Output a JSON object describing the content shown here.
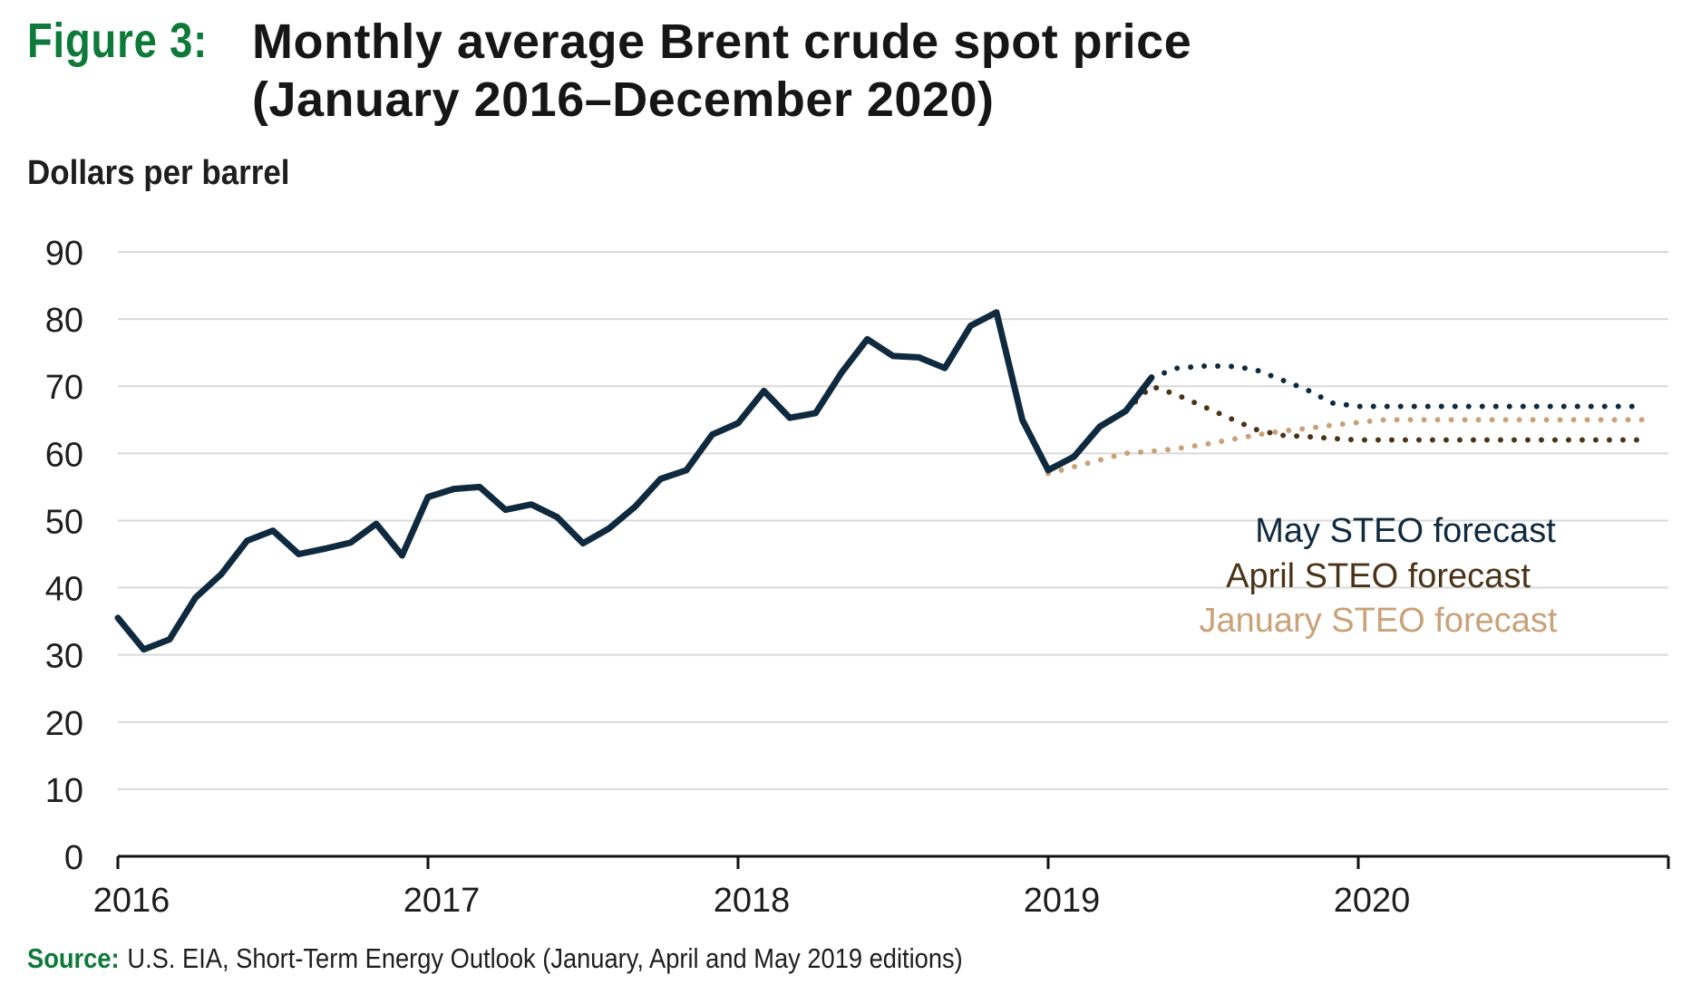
{
  "figure": {
    "label": "Figure 3:",
    "title": "Monthly average Brent crude spot price (January 2016–December 2020)",
    "unit_label": "Dollars per barrel"
  },
  "source": {
    "label": "Source:",
    "text": "U.S. EIA, Short-Term Energy Outlook (January, April and May 2019 editions)"
  },
  "chart_data": {
    "type": "line",
    "title": "Monthly average Brent crude spot price (January 2016–December 2020)",
    "ylabel": "Dollars per barrel",
    "ylim": [
      0,
      90
    ],
    "yticks": [
      0,
      10,
      20,
      30,
      40,
      50,
      60,
      70,
      80,
      90
    ],
    "xlim": [
      "2016-01",
      "2020-12"
    ],
    "xticks": [
      "2016",
      "2017",
      "2018",
      "2019",
      "2020"
    ],
    "grid": true,
    "legend": "annotation inside plot, right side",
    "colors": {
      "actual": "#0f2a3f",
      "may": "#0f2a3f",
      "april": "#4a3418",
      "january": "#c9a27a",
      "gridline": "#d9d9d9",
      "axis": "#111111",
      "figure_label": "#0d7a3a"
    },
    "series": [
      {
        "key": "actual",
        "style": "solid",
        "points": [
          [
            "2016-01",
            35.5
          ],
          [
            "2016-02",
            30.8
          ],
          [
            "2016-03",
            32.3
          ],
          [
            "2016-04",
            38.5
          ],
          [
            "2016-05",
            42.0
          ],
          [
            "2016-06",
            47.0
          ],
          [
            "2016-07",
            48.5
          ],
          [
            "2016-08",
            45.0
          ],
          [
            "2016-09",
            45.8
          ],
          [
            "2016-10",
            46.7
          ],
          [
            "2016-11",
            49.5
          ],
          [
            "2016-12",
            44.8
          ],
          [
            "2017-01",
            53.5
          ],
          [
            "2017-02",
            54.7
          ],
          [
            "2017-03",
            55.0
          ],
          [
            "2017-04",
            51.6
          ],
          [
            "2017-05",
            52.4
          ],
          [
            "2017-06",
            50.5
          ],
          [
            "2017-07",
            46.6
          ],
          [
            "2017-08",
            48.8
          ],
          [
            "2017-09",
            52.0
          ],
          [
            "2017-10",
            56.2
          ],
          [
            "2017-11",
            57.5
          ],
          [
            "2017-12",
            62.8
          ],
          [
            "2018-01",
            64.5
          ],
          [
            "2018-02",
            69.3
          ],
          [
            "2018-03",
            65.3
          ],
          [
            "2018-04",
            66.0
          ],
          [
            "2018-05",
            72.0
          ],
          [
            "2018-06",
            77.0
          ],
          [
            "2018-07",
            74.5
          ],
          [
            "2018-08",
            74.3
          ],
          [
            "2018-09",
            72.7
          ],
          [
            "2018-10",
            79.0
          ],
          [
            "2018-11",
            81.0
          ],
          [
            "2018-12",
            65.0
          ],
          [
            "2019-01",
            57.5
          ],
          [
            "2019-02",
            59.5
          ],
          [
            "2019-03",
            64.0
          ],
          [
            "2019-04",
            66.3
          ],
          [
            "2019-05",
            71.3
          ]
        ]
      },
      {
        "key": "may",
        "name": "May STEO forecast",
        "style": "dotted",
        "points": [
          [
            "2019-05",
            71.3
          ],
          [
            "2019-06",
            72.7
          ],
          [
            "2019-07",
            73.0
          ],
          [
            "2019-08",
            73.0
          ],
          [
            "2019-09",
            72.5
          ],
          [
            "2019-10",
            71.0
          ],
          [
            "2019-11",
            69.5
          ],
          [
            "2019-12",
            67.5
          ],
          [
            "2020-01",
            67.0
          ],
          [
            "2020-02",
            67.0
          ],
          [
            "2020-03",
            67.0
          ],
          [
            "2020-04",
            67.0
          ],
          [
            "2020-05",
            67.0
          ],
          [
            "2020-06",
            67.0
          ],
          [
            "2020-07",
            67.0
          ],
          [
            "2020-08",
            67.0
          ],
          [
            "2020-09",
            67.0
          ],
          [
            "2020-10",
            67.0
          ],
          [
            "2020-11",
            67.0
          ],
          [
            "2020-12",
            67.0
          ]
        ]
      },
      {
        "key": "april",
        "name": "April STEO forecast",
        "style": "dotted",
        "points": [
          [
            "2019-04",
            66.3
          ],
          [
            "2019-05",
            70.0
          ],
          [
            "2019-06",
            68.7
          ],
          [
            "2019-07",
            67.0
          ],
          [
            "2019-08",
            65.3
          ],
          [
            "2019-09",
            63.6
          ],
          [
            "2019-10",
            62.7
          ],
          [
            "2019-11",
            62.5
          ],
          [
            "2019-12",
            62.2
          ],
          [
            "2020-01",
            62.0
          ],
          [
            "2020-02",
            62.0
          ],
          [
            "2020-03",
            62.0
          ],
          [
            "2020-04",
            62.0
          ],
          [
            "2020-05",
            62.0
          ],
          [
            "2020-06",
            62.0
          ],
          [
            "2020-07",
            62.0
          ],
          [
            "2020-08",
            62.0
          ],
          [
            "2020-09",
            62.0
          ],
          [
            "2020-10",
            62.0
          ],
          [
            "2020-11",
            62.0
          ],
          [
            "2020-12",
            62.0
          ]
        ]
      },
      {
        "key": "january",
        "name": "January STEO forecast",
        "style": "dotted",
        "points": [
          [
            "2019-01",
            57.0
          ],
          [
            "2019-02",
            58.0
          ],
          [
            "2019-03",
            59.0
          ],
          [
            "2019-04",
            60.0
          ],
          [
            "2019-05",
            60.3
          ],
          [
            "2019-06",
            60.7
          ],
          [
            "2019-07",
            61.3
          ],
          [
            "2019-08",
            62.0
          ],
          [
            "2019-09",
            62.7
          ],
          [
            "2019-10",
            63.3
          ],
          [
            "2019-11",
            63.7
          ],
          [
            "2019-12",
            64.2
          ],
          [
            "2020-01",
            64.6
          ],
          [
            "2020-02",
            65.0
          ],
          [
            "2020-03",
            65.0
          ],
          [
            "2020-04",
            65.0
          ],
          [
            "2020-05",
            65.0
          ],
          [
            "2020-06",
            65.0
          ],
          [
            "2020-07",
            65.0
          ],
          [
            "2020-08",
            65.0
          ],
          [
            "2020-09",
            65.0
          ],
          [
            "2020-10",
            65.0
          ],
          [
            "2020-11",
            65.0
          ],
          [
            "2020-12",
            65.0
          ]
        ]
      }
    ],
    "annotations": [
      {
        "series": "may",
        "text": "May STEO forecast"
      },
      {
        "series": "april",
        "text": "April STEO forecast"
      },
      {
        "series": "january",
        "text": "January STEO forecast"
      }
    ]
  }
}
